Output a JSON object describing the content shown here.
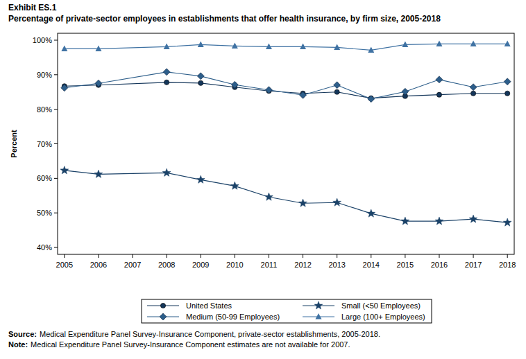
{
  "chart_data": {
    "type": "line",
    "exhibit": "Exhibit ES.1",
    "title": "Percentage of private-sector employees in establishments that offer health insurance, by firm size, 2005-2018",
    "y_label": "Percent",
    "x": [
      2005,
      2006,
      2008,
      2009,
      2010,
      2011,
      2012,
      2013,
      2014,
      2015,
      2016,
      2017,
      2018
    ],
    "series": [
      {
        "name": "United States",
        "color": "#14365a",
        "marker": "circle",
        "values": [
          86.7,
          87.0,
          87.8,
          87.6,
          86.4,
          85.3,
          84.6,
          85.0,
          83.2,
          83.8,
          84.2,
          84.6,
          84.6
        ]
      },
      {
        "name": "Small (<50 Employees)",
        "color": "#1b4268",
        "marker": "star",
        "values": [
          62.3,
          61.2,
          61.6,
          59.6,
          57.8,
          54.6,
          52.8,
          53.0,
          49.8,
          47.6,
          47.6,
          48.2,
          47.2
        ]
      },
      {
        "name": "Medium (50-99 Employees)",
        "color": "#2d5e8a",
        "marker": "diamond",
        "values": [
          86.2,
          87.5,
          90.8,
          89.6,
          87.1,
          85.6,
          84.1,
          87.0,
          83.0,
          85.1,
          88.6,
          86.4,
          88.0
        ]
      },
      {
        "name": "Large (100+ Employees)",
        "color": "#3f72a3",
        "marker": "triangle",
        "values": [
          97.5,
          97.5,
          98.1,
          98.7,
          98.3,
          98.1,
          98.1,
          97.9,
          97.1,
          98.7,
          98.9,
          98.9,
          98.9
        ]
      }
    ],
    "xlim": [
      2004.8,
      2018.2
    ],
    "xticks": [
      2005,
      2006,
      2007,
      2008,
      2009,
      2010,
      2011,
      2012,
      2013,
      2014,
      2015,
      2016,
      2017,
      2018
    ],
    "ylim": [
      38,
      102
    ],
    "yticks": [
      {
        "value": 40,
        "label": "40%"
      },
      {
        "value": 50,
        "label": "50%"
      },
      {
        "value": 60,
        "label": "60%"
      },
      {
        "value": 70,
        "label": "70%"
      },
      {
        "value": 80,
        "label": "80%"
      },
      {
        "value": 90,
        "label": "90%"
      },
      {
        "value": 100,
        "label": "100%"
      }
    ],
    "grid": false,
    "legend": "bottom",
    "annotations": [
      {
        "label": "Source:",
        "text": "Medical Expenditure Panel Survey-Insurance Component, private-sector establishments, 2005-2018."
      },
      {
        "label": "Note:",
        "text": "Medical Expenditure Panel Survey-Insurance Component estimates are not available for 2007."
      }
    ]
  }
}
